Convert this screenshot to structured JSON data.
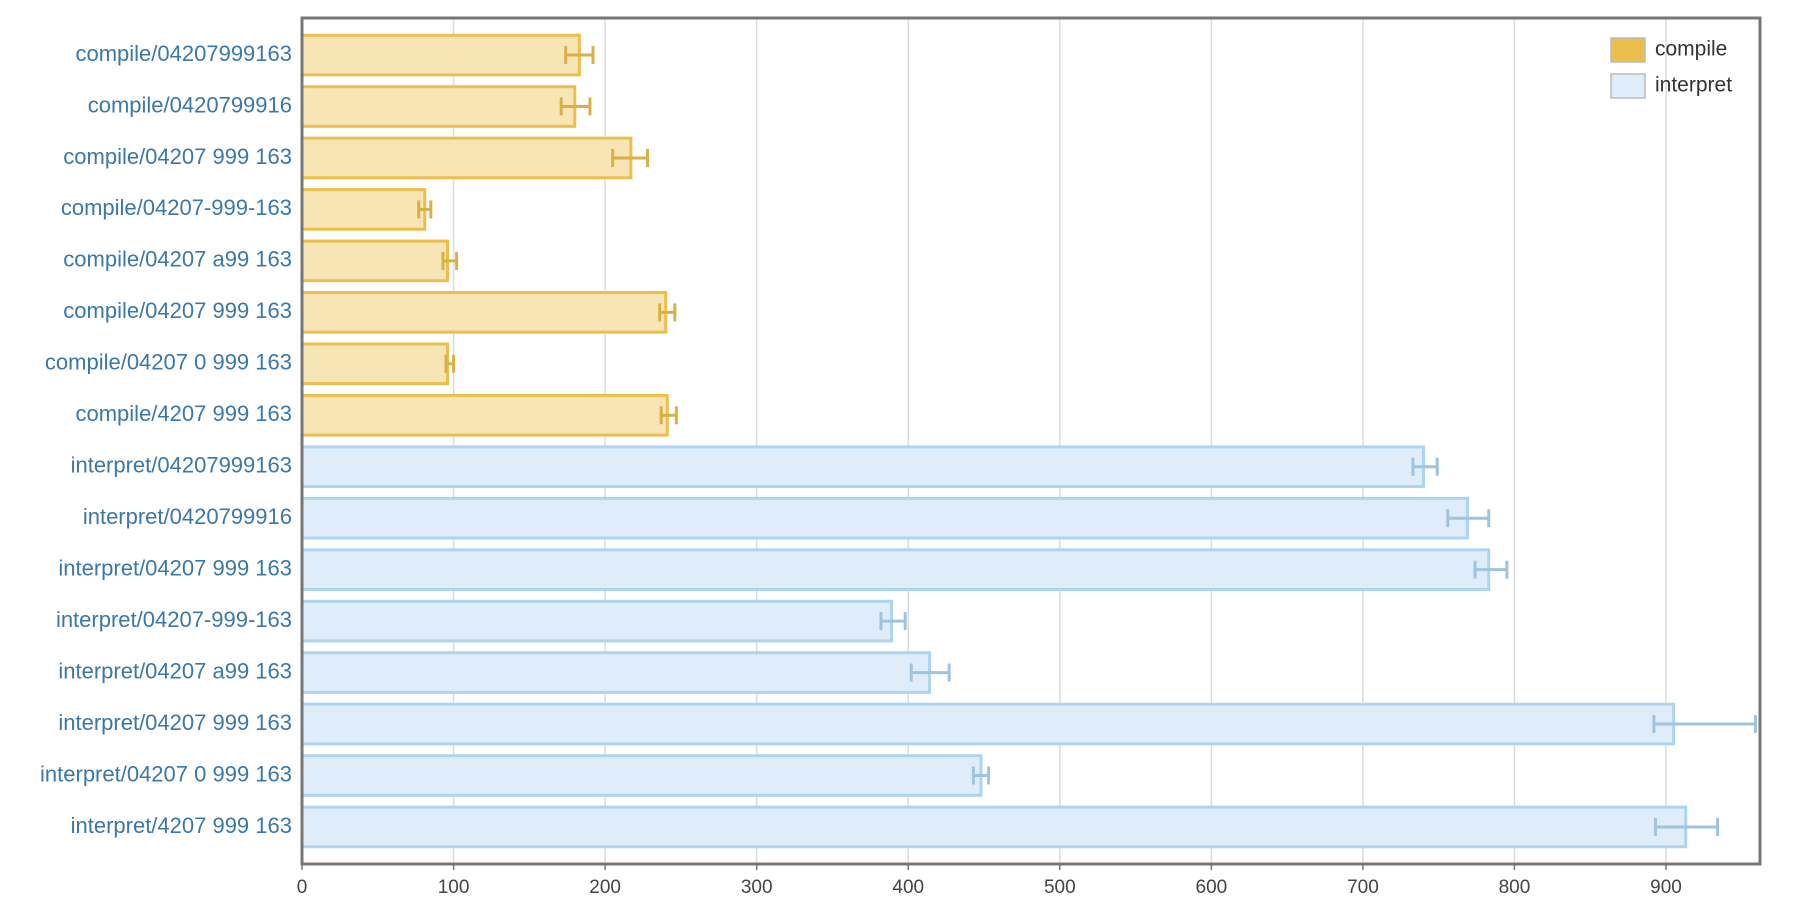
{
  "chart_data": {
    "type": "hbar",
    "categories": [
      "compile/04207999163",
      "compile/0420799916",
      "compile/04207 999 163",
      "compile/04207-999-163",
      "compile/04207 a99 163",
      "compile/04207 999 163",
      "compile/04207 0 999 163",
      "compile/4207 999 163",
      "interpret/04207999163",
      "interpret/0420799916",
      "interpret/04207 999 163",
      "interpret/04207-999-163",
      "interpret/04207 a99 163",
      "interpret/04207 999 163",
      "interpret/04207 0 999 163",
      "interpret/4207 999 163"
    ],
    "series": [
      {
        "name": "compile",
        "color": "#ecbf4d",
        "fill": "#f8e5b5",
        "values": [
          183,
          180,
          217,
          81,
          96,
          240,
          96,
          241,
          null,
          null,
          null,
          null,
          null,
          null,
          null,
          null
        ],
        "error_low": [
          174,
          171,
          205,
          77,
          93,
          236,
          95,
          237,
          null,
          null,
          null,
          null,
          null,
          null,
          null,
          null
        ],
        "error_high": [
          192,
          190,
          228,
          85,
          102,
          246,
          100,
          247,
          null,
          null,
          null,
          null,
          null,
          null,
          null,
          null
        ]
      },
      {
        "name": "interpret",
        "color": "#acd5f2",
        "fill": "#dfedfb",
        "values": [
          null,
          null,
          null,
          null,
          null,
          null,
          null,
          null,
          740,
          769,
          783,
          389,
          414,
          905,
          448,
          913
        ],
        "error_low": [
          null,
          null,
          null,
          null,
          null,
          null,
          null,
          null,
          733,
          756,
          774,
          382,
          402,
          892,
          443,
          893
        ],
        "error_high": [
          null,
          null,
          null,
          null,
          null,
          null,
          null,
          null,
          749,
          783,
          795,
          398,
          427,
          959,
          453,
          934
        ]
      }
    ],
    "xlim": [
      0,
      962
    ],
    "xticks": [
      0,
      100,
      200,
      300,
      400,
      500,
      600,
      700,
      800,
      900
    ],
    "grid": true,
    "legend": "top-right"
  }
}
